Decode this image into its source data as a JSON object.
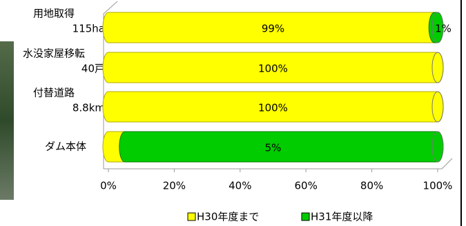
{
  "chart_data": {
    "type": "stacked-bar-horizontal",
    "categories": [
      "用地取得",
      "水没家屋移転",
      "付替道路",
      "ダム本体"
    ],
    "sublabels": [
      "115ha",
      "40戸",
      "8.8km",
      null
    ],
    "series": [
      {
        "name": "H30年度まで",
        "color": "#ffff00",
        "values": [
          99,
          100,
          100,
          5
        ],
        "value_labels": [
          "99%",
          "100%",
          "100%",
          "5%"
        ]
      },
      {
        "name": "H31年度以降",
        "color": "#00cc00",
        "values": [
          1,
          0,
          0,
          95
        ],
        "value_labels": [
          "1%",
          null,
          null,
          null
        ]
      }
    ],
    "xlim": [
      0,
      100
    ],
    "xticks": [
      {
        "value": 0,
        "label": "0%"
      },
      {
        "value": 20,
        "label": "20%"
      },
      {
        "value": 40,
        "label": "40%"
      },
      {
        "value": 60,
        "label": "60%"
      },
      {
        "value": 80,
        "label": "80%"
      },
      {
        "value": 100,
        "label": "100%"
      }
    ],
    "legend": "bottom"
  }
}
